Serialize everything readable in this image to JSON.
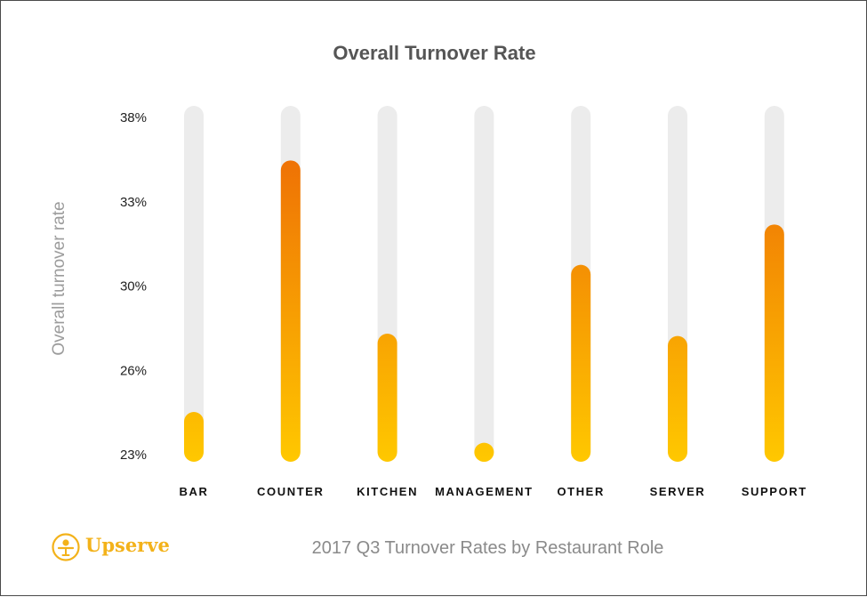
{
  "chart_data": {
    "type": "bar",
    "title": "Overall Turnover Rate",
    "ylabel": "Overall turnover rate",
    "xlabel": "",
    "categories": [
      "BAR",
      "COUNTER",
      "KITCHEN",
      "MANAGEMENT",
      "OTHER",
      "SERVER",
      "SUPPORT"
    ],
    "values": [
      25.1,
      35.7,
      28.4,
      23.8,
      31.3,
      28.3,
      33.0
    ],
    "y_ticks": [
      "38%",
      "33%",
      "30%",
      "26%",
      "23%"
    ],
    "ylim": [
      23,
      38
    ],
    "grid": false,
    "legend": "none",
    "colors": {
      "track": "#ececec",
      "gradient_top": "#ee6f05",
      "gradient_bottom": "#ffc800",
      "accent": "#f3b21a"
    }
  },
  "footer": {
    "caption": "2017 Q3 Turnover Rates by Restaurant Role",
    "brand": "Upserve",
    "brand_icon": "upserve-logo-icon"
  }
}
